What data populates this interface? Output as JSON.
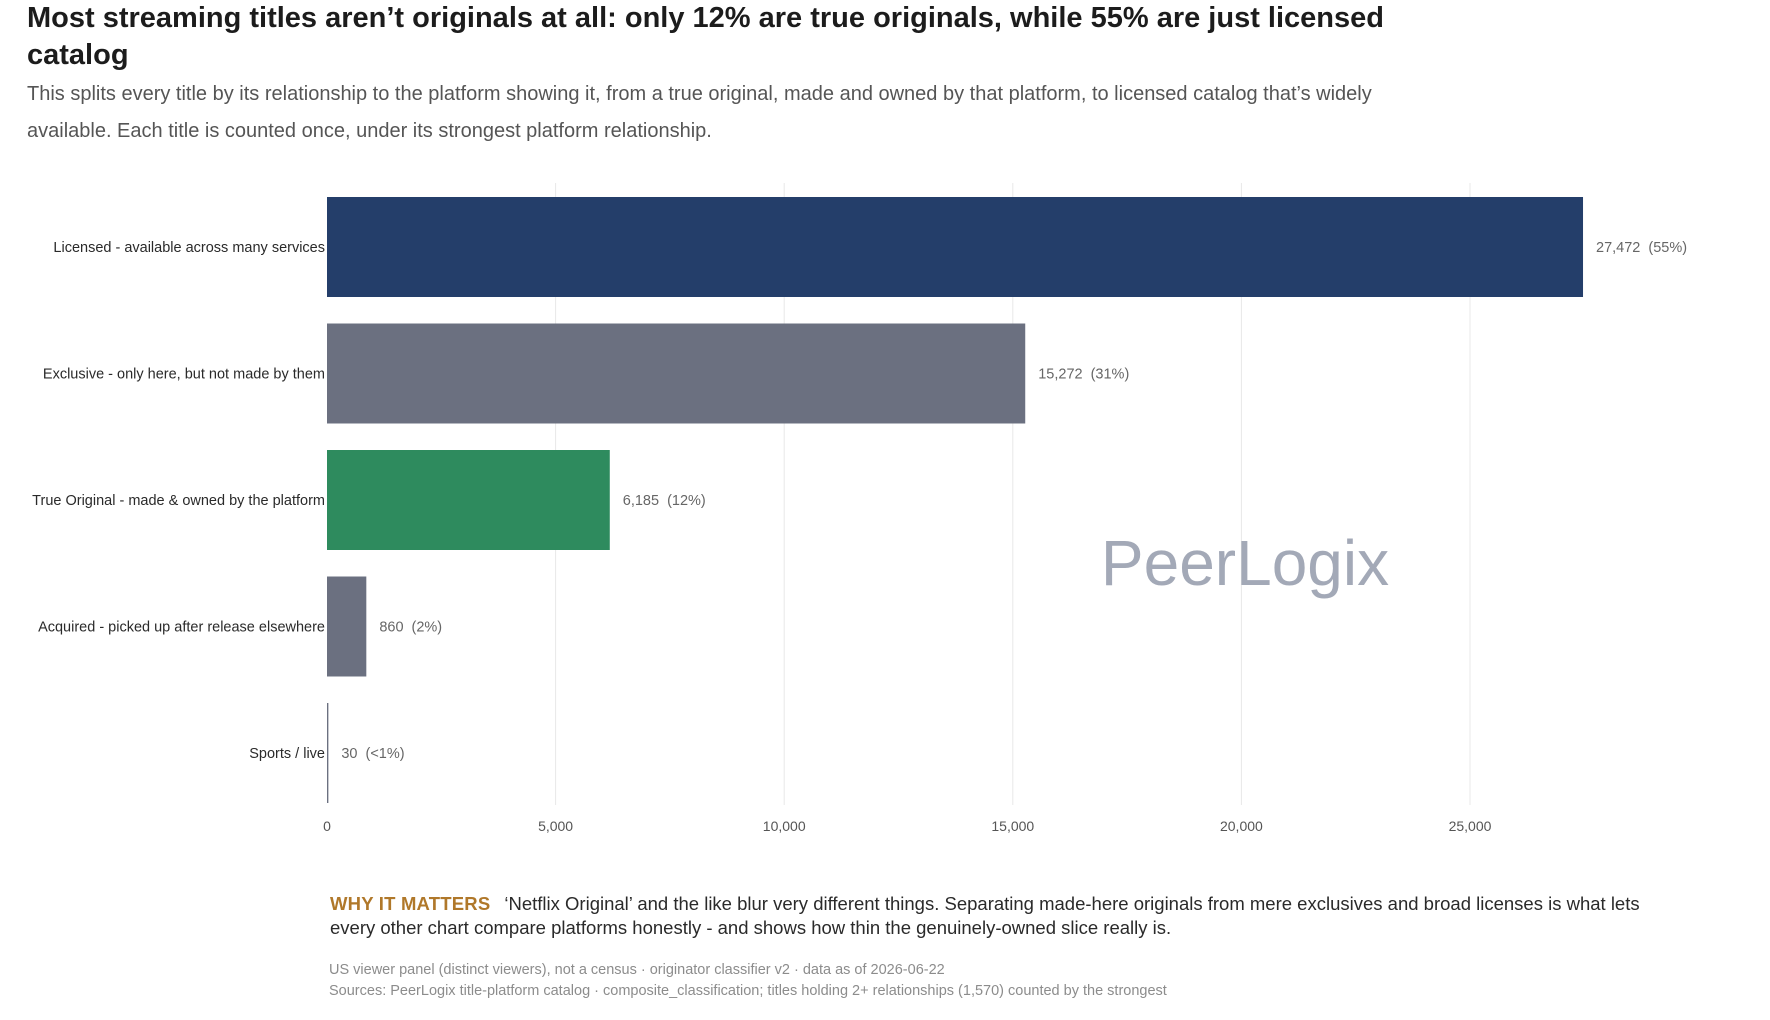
{
  "title": "Most streaming titles aren’t originals at all: only 12% are true originals, while 55% are just licensed catalog",
  "subtitle": "This splits every title by its relationship to the platform showing it, from a true original, made and owned by that platform, to licensed catalog that’s widely available. Each title is counted once, under its strongest platform relationship.",
  "watermark": "PeerLogix",
  "why_it_matters": {
    "label": "WHY IT MATTERS",
    "text": "‘Netflix Original’ and the like blur very different things. Separating made-here originals from mere exclusives and broad licenses is what lets every other chart compare platforms honestly - and shows how thin the genuinely-owned slice really is."
  },
  "footnotes": [
    "US viewer panel (distinct viewers), not a census · originator classifier v2 · data as of 2026-06-22",
    "Sources: PeerLogix title-platform catalog · composite_classification; titles holding 2+ relationships (1,570) counted by the strongest"
  ],
  "colors": {
    "navy": "#243e6a",
    "slate": "#6b7080",
    "green": "#2e8b5e",
    "grid": "#e8e8e8",
    "accent_label": "#b0782a",
    "watermark": "#a3a9b7"
  },
  "chart_data": {
    "type": "bar",
    "orientation": "horizontal",
    "categories": [
      "Licensed - available across many services",
      "Exclusive - only here, but not made by them",
      "True Original - made & owned by the platform",
      "Acquired - picked up after release elsewhere",
      "Sports / live"
    ],
    "values": [
      27472,
      15272,
      6185,
      860,
      30
    ],
    "value_labels": [
      "27,472",
      "15,272",
      "6,185",
      "860",
      "30"
    ],
    "share_labels": [
      "(55%)",
      "(31%)",
      "(12%)",
      "(2%)",
      "(<1%)"
    ],
    "bar_colors": [
      "#243e6a",
      "#6b7080",
      "#2e8b5e",
      "#6b7080",
      "#6b7080"
    ],
    "xlim": [
      0,
      30000
    ],
    "xticks": [
      0,
      5000,
      10000,
      15000,
      20000,
      25000
    ],
    "xtick_labels": [
      "0",
      "5,000",
      "10,000",
      "15,000",
      "20,000",
      "25,000"
    ],
    "grid": "vertical",
    "legend": "none"
  }
}
